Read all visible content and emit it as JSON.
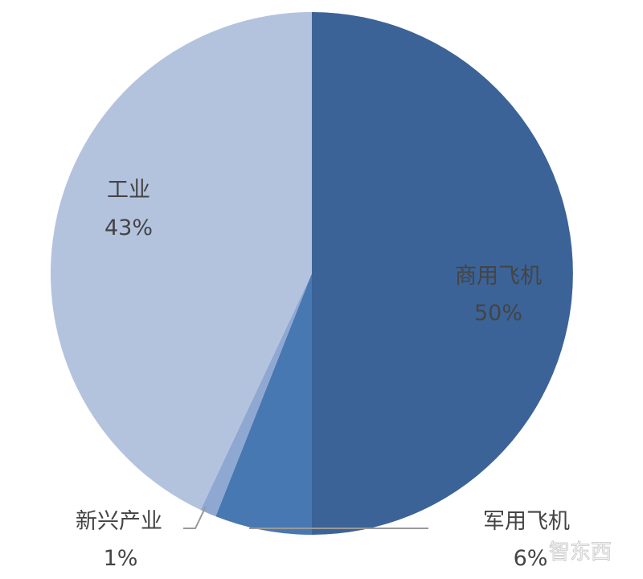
{
  "chart_data": {
    "type": "pie",
    "start_angle": "top",
    "direction": "clockwise",
    "slices": [
      {
        "label": "商用飞机",
        "value": 50,
        "value_label": "50%",
        "color": "#3b6397"
      },
      {
        "label": "军用飞机",
        "value": 6,
        "value_label": "6%",
        "color": "#4878b2"
      },
      {
        "label": "新兴产业",
        "value": 1,
        "value_label": "1%",
        "color": "#8ea8d2"
      },
      {
        "label": "工业",
        "value": 43,
        "value_label": "43%",
        "color": "#b3c3de"
      }
    ]
  },
  "watermark": "智东西"
}
